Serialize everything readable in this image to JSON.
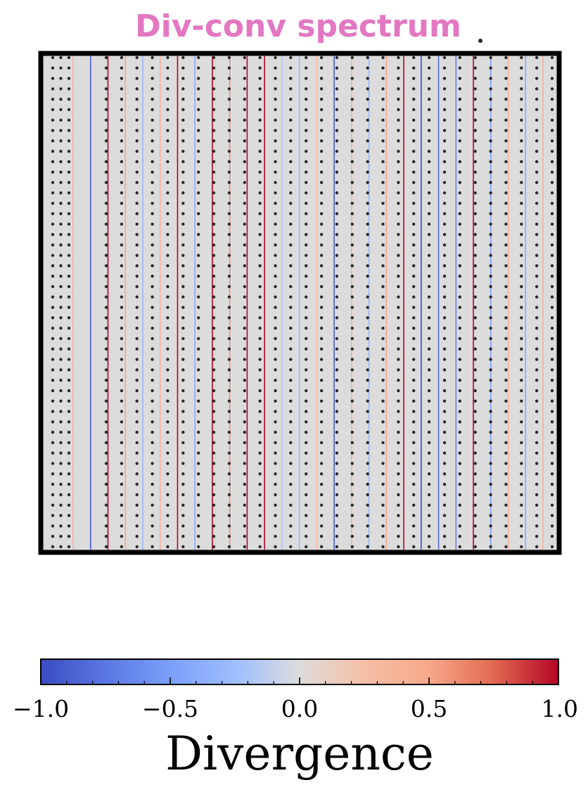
{
  "chart_data": {
    "type": "heatmap",
    "title": "Div-conv spectrum",
    "title_color": "#e377c2",
    "plot_background": "#dcdcdc",
    "frame_color": "#000000",
    "dot_color": "#2a2a2a",
    "stripe_divergence": [
      0.4,
      -0.9,
      1.0,
      0.5,
      -0.3,
      0.4,
      1.0,
      -0.4,
      1.0,
      0.6,
      1.0,
      1.0,
      -0.2,
      -0.3,
      0.3,
      -0.9,
      0.4,
      -0.3,
      0.5,
      1.0,
      -1.0,
      -0.8,
      -0.7,
      1.0,
      -0.5,
      0.4,
      -0.4,
      0.4
    ],
    "marker_columns_left": 3,
    "marker_columns_right": 30,
    "marker_rows": 48,
    "colorbar": {
      "cmap": "coolwarm",
      "range": [
        -1.0,
        1.0
      ],
      "ticks": [
        -1.0,
        -0.5,
        0.0,
        0.5,
        1.0
      ],
      "tick_labels": [
        "−1.0",
        "−0.5",
        "0.0",
        "0.5",
        "1.0"
      ],
      "label": "Divergence"
    }
  }
}
